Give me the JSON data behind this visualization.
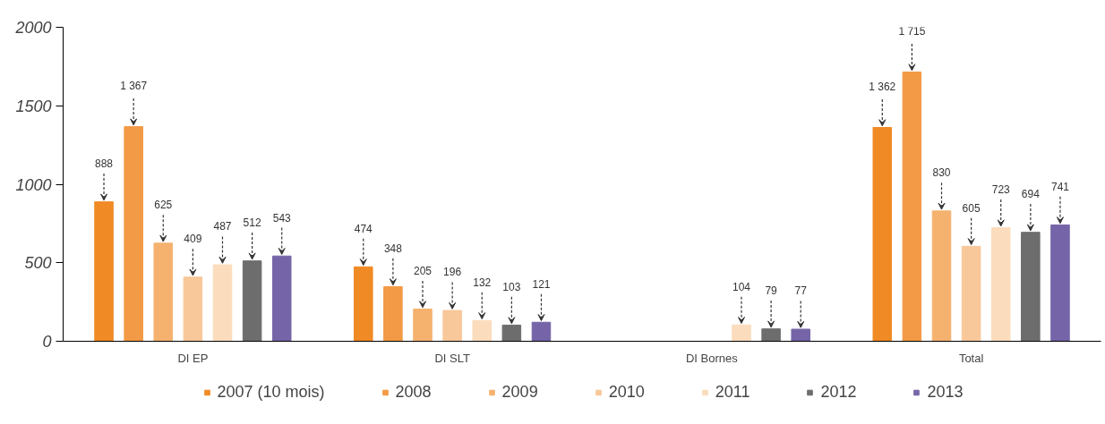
{
  "chart_data": {
    "type": "bar",
    "categories": [
      "DI EP",
      "DI SLT",
      "DI Bornes",
      "Total"
    ],
    "ylim": [
      0,
      2000
    ],
    "yticks": [
      0,
      500,
      1000,
      1500,
      2000
    ],
    "grid": false,
    "legend": "bottom",
    "series": [
      {
        "name": "2007 (10 mois)",
        "color": "#f08a24",
        "values": [
          888,
          474,
          null,
          1362
        ],
        "value_labels": [
          "888",
          "474",
          null,
          "1 362"
        ]
      },
      {
        "name": "2008",
        "color": "#f29a45",
        "values": [
          1367,
          348,
          null,
          1715
        ],
        "value_labels": [
          "1 367",
          "348",
          null,
          "1 715"
        ]
      },
      {
        "name": "2009",
        "color": "#f5b26f",
        "values": [
          625,
          205,
          null,
          830
        ],
        "value_labels": [
          "625",
          "205",
          null,
          "830"
        ]
      },
      {
        "name": "2010",
        "color": "#f8c79a",
        "values": [
          409,
          196,
          null,
          605
        ],
        "value_labels": [
          "409",
          "196",
          null,
          "605"
        ]
      },
      {
        "name": "2011",
        "color": "#fbdcbc",
        "values": [
          487,
          132,
          104,
          723
        ],
        "value_labels": [
          "487",
          "132",
          "104",
          "723"
        ]
      },
      {
        "name": "2012",
        "color": "#6d6d6d",
        "values": [
          512,
          103,
          79,
          694
        ],
        "value_labels": [
          "512",
          "103",
          "79",
          "694"
        ]
      },
      {
        "name": "2013",
        "color": "#7565a8",
        "values": [
          543,
          121,
          77,
          741
        ],
        "value_labels": [
          "543",
          "121",
          "77",
          "741"
        ]
      }
    ]
  }
}
